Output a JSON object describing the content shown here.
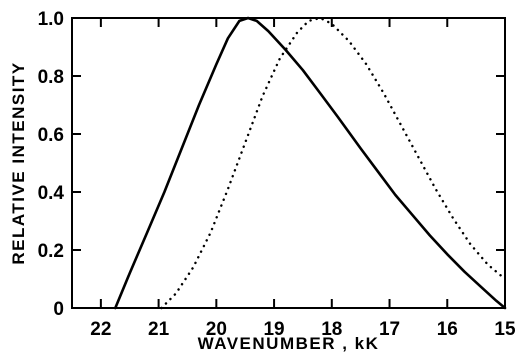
{
  "chart_data": {
    "type": "line",
    "xlabel": "WAVENUMBER , kK",
    "ylabel": "RELATIVE INTENSITY",
    "xlim": [
      22.5,
      15
    ],
    "ylim": [
      0,
      1.0
    ],
    "x_ticks": [
      22,
      21,
      20,
      19,
      18,
      17,
      16,
      15
    ],
    "x_tick_labels": [
      "22",
      "21",
      "20",
      "19",
      "18",
      "17",
      "16",
      "15"
    ],
    "y_ticks": [
      0,
      0.2,
      0.4,
      0.6,
      0.8,
      1.0
    ],
    "y_tick_labels": [
      "0",
      "0.2",
      "0.4",
      "0.6",
      "0.8",
      "1.0"
    ],
    "grid": false,
    "series": [
      {
        "style": "solid",
        "x": [
          21.75,
          21.5,
          21.2,
          20.9,
          20.6,
          20.3,
          20.0,
          19.8,
          19.6,
          19.45,
          19.3,
          19.1,
          18.8,
          18.5,
          18.2,
          17.9,
          17.5,
          17.2,
          16.9,
          16.6,
          16.3,
          16.0,
          15.7,
          15.4,
          15.15,
          15.0
        ],
        "y": [
          0.0,
          0.12,
          0.26,
          0.4,
          0.55,
          0.7,
          0.84,
          0.93,
          0.99,
          1.0,
          0.99,
          0.955,
          0.89,
          0.82,
          0.74,
          0.66,
          0.55,
          0.47,
          0.39,
          0.32,
          0.25,
          0.185,
          0.125,
          0.07,
          0.025,
          0.0
        ]
      },
      {
        "style": "dotted",
        "x": [
          20.95,
          20.7,
          20.4,
          20.1,
          19.8,
          19.5,
          19.2,
          18.9,
          18.6,
          18.4,
          18.2,
          18.0,
          17.7,
          17.4,
          17.1,
          16.8,
          16.5,
          16.2,
          15.9,
          15.6,
          15.3,
          15.0
        ],
        "y": [
          0.0,
          0.05,
          0.14,
          0.26,
          0.41,
          0.57,
          0.73,
          0.86,
          0.95,
          0.99,
          1.0,
          0.98,
          0.92,
          0.84,
          0.74,
          0.63,
          0.52,
          0.41,
          0.31,
          0.22,
          0.15,
          0.1
        ]
      }
    ]
  }
}
